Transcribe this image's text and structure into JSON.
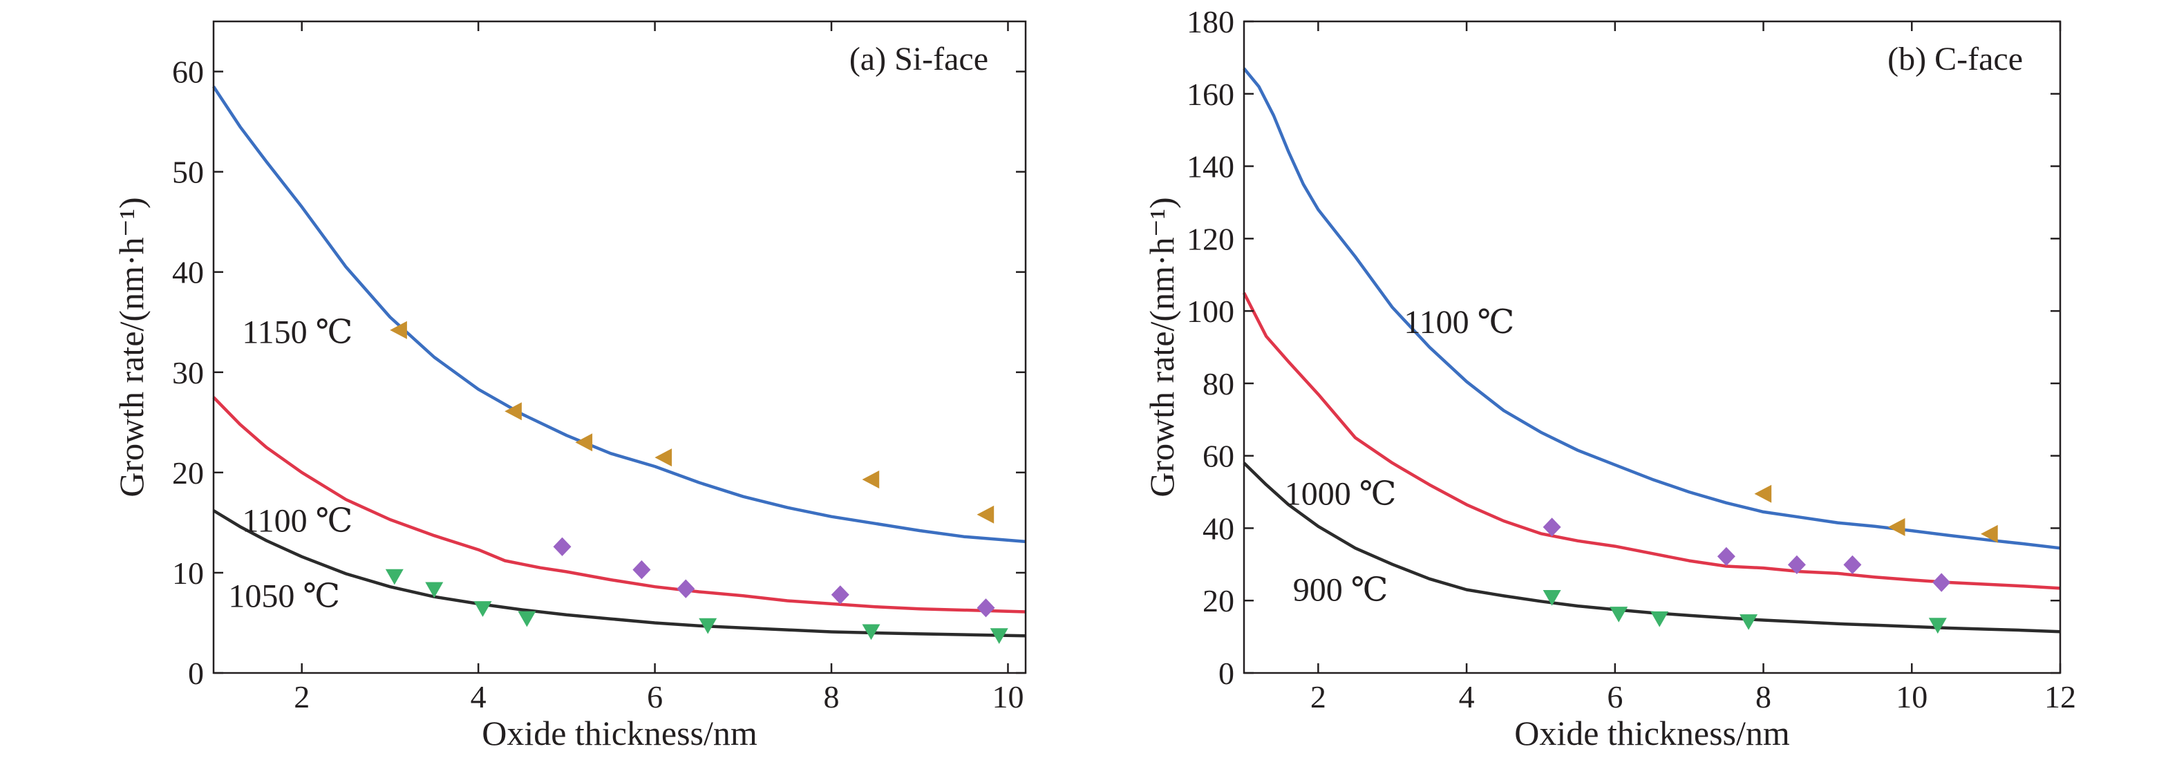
{
  "chart_data": [
    {
      "type": "line",
      "title": "(a) Si-face",
      "xlabel": "Oxide thickness/nm",
      "ylabel": "Growth rate/(nm·h⁻¹)",
      "xlim": [
        1,
        10.2
      ],
      "ylim": [
        0,
        65
      ],
      "xticks": [
        2,
        4,
        6,
        8,
        10
      ],
      "yticks": [
        0,
        10,
        20,
        30,
        40,
        50,
        60
      ],
      "grid": false,
      "series": [
        {
          "name": "1150 ℃",
          "color": "#3b6fc1",
          "line": [
            [
              1.0,
              58.5
            ],
            [
              1.3,
              54.5
            ],
            [
              1.6,
              51.0
            ],
            [
              2.0,
              46.5
            ],
            [
              2.5,
              40.5
            ],
            [
              3.0,
              35.5
            ],
            [
              3.5,
              31.5
            ],
            [
              4.0,
              28.3
            ],
            [
              4.5,
              25.8
            ],
            [
              5.0,
              23.7
            ],
            [
              5.5,
              21.9
            ],
            [
              6.0,
              20.6
            ],
            [
              6.5,
              19.0
            ],
            [
              7.0,
              17.6
            ],
            [
              7.5,
              16.5
            ],
            [
              8.0,
              15.6
            ],
            [
              8.5,
              14.9
            ],
            [
              9.0,
              14.2
            ],
            [
              9.5,
              13.6
            ],
            [
              10.2,
              13.1
            ]
          ],
          "marker": "triangle-left",
          "marker_color": "#c8902d",
          "points": [
            [
              3.1,
              34.2
            ],
            [
              4.4,
              26.1
            ],
            [
              5.2,
              23.0
            ],
            [
              6.1,
              21.5
            ],
            [
              8.45,
              19.3
            ],
            [
              9.75,
              15.8
            ]
          ]
        },
        {
          "name": "1100 ℃",
          "color": "#e0364a",
          "line": [
            [
              1.0,
              27.5
            ],
            [
              1.3,
              24.8
            ],
            [
              1.6,
              22.5
            ],
            [
              2.0,
              20.0
            ],
            [
              2.5,
              17.3
            ],
            [
              3.0,
              15.3
            ],
            [
              3.5,
              13.7
            ],
            [
              4.0,
              12.3
            ],
            [
              4.3,
              11.2
            ],
            [
              4.7,
              10.5
            ],
            [
              5.0,
              10.1
            ],
            [
              5.5,
              9.3
            ],
            [
              6.0,
              8.6
            ],
            [
              6.5,
              8.1
            ],
            [
              7.0,
              7.7
            ],
            [
              7.5,
              7.2
            ],
            [
              8.0,
              6.9
            ],
            [
              8.5,
              6.6
            ],
            [
              9.0,
              6.4
            ],
            [
              10.2,
              6.1
            ]
          ],
          "marker": "diamond",
          "marker_color": "#9a63c4",
          "points": [
            [
              4.95,
              12.6
            ],
            [
              5.85,
              10.3
            ],
            [
              6.35,
              8.4
            ],
            [
              8.1,
              7.8
            ],
            [
              9.75,
              6.5
            ]
          ]
        },
        {
          "name": "1050 ℃",
          "color": "#2b2b2b",
          "line": [
            [
              1.0,
              16.2
            ],
            [
              1.3,
              14.6
            ],
            [
              1.6,
              13.2
            ],
            [
              2.0,
              11.6
            ],
            [
              2.5,
              9.9
            ],
            [
              3.0,
              8.6
            ],
            [
              3.5,
              7.6
            ],
            [
              4.0,
              6.9
            ],
            [
              4.5,
              6.3
            ],
            [
              5.0,
              5.8
            ],
            [
              5.5,
              5.4
            ],
            [
              6.0,
              5.0
            ],
            [
              6.5,
              4.7
            ],
            [
              7.0,
              4.5
            ],
            [
              7.5,
              4.3
            ],
            [
              8.0,
              4.1
            ],
            [
              8.5,
              4.0
            ],
            [
              9.0,
              3.9
            ],
            [
              10.2,
              3.7
            ]
          ],
          "marker": "triangle-down",
          "marker_color": "#3cb36a",
          "points": [
            [
              3.05,
              9.6
            ],
            [
              3.5,
              8.3
            ],
            [
              4.05,
              6.4
            ],
            [
              4.55,
              5.4
            ],
            [
              6.6,
              4.7
            ],
            [
              8.45,
              4.1
            ],
            [
              9.9,
              3.7
            ]
          ]
        }
      ],
      "labels": [
        {
          "text": "1150 ℃",
          "x": 1.95,
          "y": 34.0
        },
        {
          "text": "1100 ℃",
          "x": 1.95,
          "y": 15.2
        },
        {
          "text": "1050 ℃",
          "x": 1.8,
          "y": 7.7
        }
      ]
    },
    {
      "type": "line",
      "title": "(b) C-face",
      "xlabel": "Oxide thickness/nm",
      "ylabel": "Growth rate/(nm·h⁻¹)",
      "xlim": [
        1,
        12
      ],
      "ylim": [
        0,
        180
      ],
      "xticks": [
        2,
        4,
        6,
        8,
        10,
        12
      ],
      "yticks": [
        0,
        20,
        40,
        60,
        80,
        100,
        120,
        140,
        160,
        180
      ],
      "grid": false,
      "series": [
        {
          "name": "1100 ℃",
          "color": "#3b6fc1",
          "line": [
            [
              1.0,
              167
            ],
            [
              1.2,
              162
            ],
            [
              1.4,
              154
            ],
            [
              1.6,
              144
            ],
            [
              1.8,
              135
            ],
            [
              2.0,
              128
            ],
            [
              2.5,
              115
            ],
            [
              3.0,
              101
            ],
            [
              3.5,
              90
            ],
            [
              4.0,
              80.5
            ],
            [
              4.5,
              72.5
            ],
            [
              5.0,
              66.5
            ],
            [
              5.5,
              61.5
            ],
            [
              6.0,
              57.5
            ],
            [
              6.5,
              53.5
            ],
            [
              7.0,
              50.0
            ],
            [
              7.5,
              47.0
            ],
            [
              8.0,
              44.5
            ],
            [
              8.5,
              43.0
            ],
            [
              9.0,
              41.5
            ],
            [
              9.5,
              40.5
            ],
            [
              10.0,
              39.3
            ],
            [
              10.5,
              38.0
            ],
            [
              11.0,
              36.8
            ],
            [
              11.5,
              35.7
            ],
            [
              12.0,
              34.5
            ]
          ],
          "marker": "triangle-left",
          "marker_color": "#c8902d",
          "points": [
            [
              8.0,
              49.5
            ],
            [
              9.8,
              40.3
            ],
            [
              11.05,
              38.4
            ]
          ]
        },
        {
          "name": "1000 ℃",
          "color": "#e0364a",
          "line": [
            [
              1.0,
              105
            ],
            [
              1.3,
              93
            ],
            [
              1.6,
              86
            ],
            [
              2.0,
              77
            ],
            [
              2.5,
              65
            ],
            [
              3.0,
              58
            ],
            [
              3.5,
              52
            ],
            [
              4.0,
              46.5
            ],
            [
              4.5,
              42.0
            ],
            [
              5.0,
              38.5
            ],
            [
              5.5,
              36.5
            ],
            [
              6.0,
              35.0
            ],
            [
              6.5,
              33.0
            ],
            [
              7.0,
              31.0
            ],
            [
              7.5,
              29.5
            ],
            [
              8.0,
              29.0
            ],
            [
              8.5,
              28.0
            ],
            [
              9.0,
              27.5
            ],
            [
              9.5,
              26.5
            ],
            [
              10.0,
              25.7
            ],
            [
              10.5,
              25.0
            ],
            [
              11.0,
              24.5
            ],
            [
              11.5,
              24.0
            ],
            [
              12.0,
              23.4
            ]
          ],
          "marker": "diamond",
          "marker_color": "#9a63c4",
          "points": [
            [
              5.15,
              40.3
            ],
            [
              7.5,
              32.2
            ],
            [
              8.45,
              29.9
            ],
            [
              9.2,
              29.9
            ],
            [
              10.4,
              25.0
            ]
          ]
        },
        {
          "name": "900 ℃",
          "color": "#2b2b2b",
          "line": [
            [
              1.0,
              58
            ],
            [
              1.3,
              52
            ],
            [
              1.6,
              46.5
            ],
            [
              2.0,
              40.5
            ],
            [
              2.5,
              34.5
            ],
            [
              3.0,
              30.0
            ],
            [
              3.5,
              26.0
            ],
            [
              4.0,
              23.0
            ],
            [
              4.5,
              21.3
            ],
            [
              5.0,
              19.8
            ],
            [
              5.5,
              18.5
            ],
            [
              6.0,
              17.5
            ],
            [
              6.5,
              16.6
            ],
            [
              7.0,
              15.9
            ],
            [
              7.5,
              15.2
            ],
            [
              8.0,
              14.6
            ],
            [
              8.5,
              14.1
            ],
            [
              9.0,
              13.6
            ],
            [
              9.5,
              13.2
            ],
            [
              10.0,
              12.8
            ],
            [
              10.5,
              12.4
            ],
            [
              11.0,
              12.1
            ],
            [
              11.5,
              11.8
            ],
            [
              12.0,
              11.4
            ]
          ],
          "marker": "triangle-down",
          "marker_color": "#3cb36a",
          "points": [
            [
              5.15,
              20.8
            ],
            [
              6.05,
              16.2
            ],
            [
              6.6,
              14.9
            ],
            [
              7.8,
              14.1
            ],
            [
              10.35,
              13.1
            ]
          ]
        }
      ],
      "labels": [
        {
          "text": "1100 ℃",
          "x": 3.9,
          "y": 97.0
        },
        {
          "text": "1000 ℃",
          "x": 2.3,
          "y": 49.5
        },
        {
          "text": "900 ℃",
          "x": 2.3,
          "y": 23.0
        }
      ]
    }
  ]
}
